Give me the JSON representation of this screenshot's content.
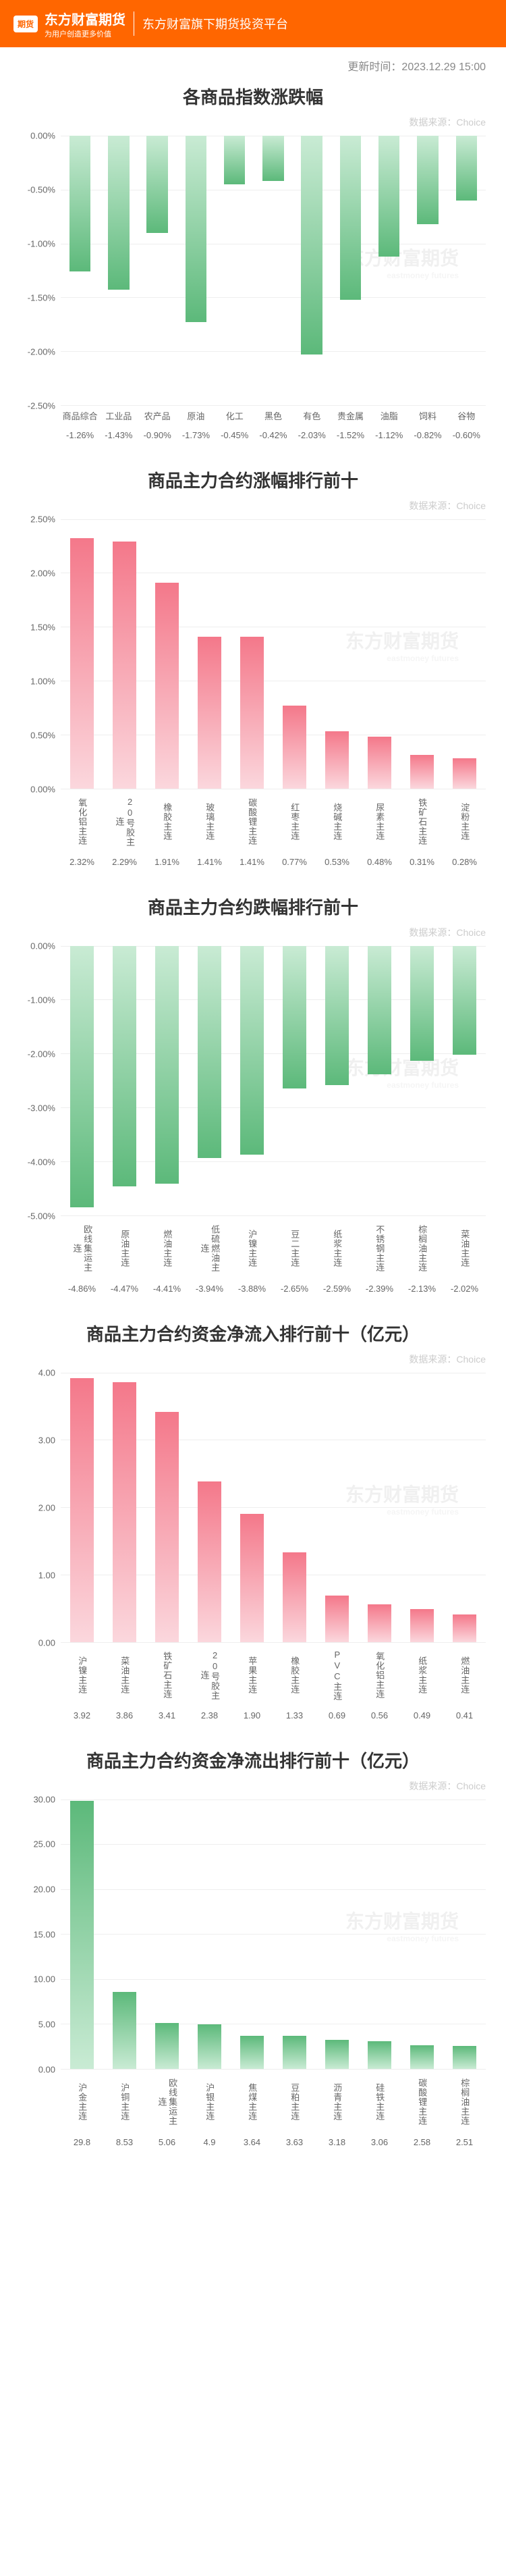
{
  "header": {
    "logo_text": "期货",
    "brand_main": "东方财富期货",
    "brand_sub": "为用户创造更多价值",
    "platform": "东方财富旗下期货投资平台",
    "bg_color": "#ff6600"
  },
  "timestamp": "更新时间：2023.12.29 15:00",
  "data_source_label": "数据来源：Choice",
  "watermark_main": "东方财富期货",
  "watermark_sub": "eastmoney futures",
  "colors": {
    "green_top": "#5cb97a",
    "green_bottom": "#c9ebd4",
    "red_top": "#f4788a",
    "red_bottom": "#fbd7dd",
    "grid": "#eeeeee",
    "text": "#666666"
  },
  "chart1": {
    "title": "各商品指数涨跌幅",
    "type": "bar_negative",
    "ymin": -2.5,
    "ymax": 0.0,
    "ystep": 0.5,
    "ysuffix": "%",
    "categories": [
      "商品综合",
      "工业品",
      "农产品",
      "原油",
      "化工",
      "黑色",
      "有色",
      "贵金属",
      "油脂",
      "饲料",
      "谷物"
    ],
    "values": [
      -1.26,
      -1.43,
      -0.9,
      -1.73,
      -0.45,
      -0.42,
      -2.03,
      -1.52,
      -1.12,
      -0.82,
      -0.6
    ],
    "value_labels": [
      "-1.26%",
      "-1.43%",
      "-0.90%",
      "-1.73%",
      "-0.45%",
      "-0.42%",
      "-2.03%",
      "-1.52%",
      "-1.12%",
      "-0.82%",
      "-0.60%"
    ],
    "vertical_labels": false
  },
  "chart2": {
    "title": "商品主力合约涨幅排行前十",
    "type": "bar_positive",
    "ymin": 0.0,
    "ymax": 2.5,
    "ystep": 0.5,
    "ysuffix": "%",
    "categories": [
      "氧化铝主连",
      "20号胶主连",
      "橡胶主连",
      "玻璃主连",
      "碳酸锂主连",
      "红枣主连",
      "烧碱主连",
      "尿素主连",
      "铁矿石主连",
      "淀粉主连"
    ],
    "values": [
      2.32,
      2.29,
      1.91,
      1.41,
      1.41,
      0.77,
      0.53,
      0.48,
      0.31,
      0.28
    ],
    "value_labels": [
      "2.32%",
      "2.29%",
      "1.91%",
      "1.41%",
      "1.41%",
      "0.77%",
      "0.53%",
      "0.48%",
      "0.31%",
      "0.28%"
    ],
    "color": "red",
    "vertical_labels": true
  },
  "chart3": {
    "title": "商品主力合约跌幅排行前十",
    "type": "bar_negative",
    "ymin": -5.0,
    "ymax": 0.0,
    "ystep": 1.0,
    "ysuffix": "%",
    "categories": [
      "欧线集运主连",
      "原油主连",
      "燃油主连",
      "低硫燃油主连",
      "沪镍主连",
      "豆二主连",
      "纸浆主连",
      "不锈钢主连",
      "棕榈油主连",
      "菜油主连"
    ],
    "values": [
      -4.86,
      -4.47,
      -4.41,
      -3.94,
      -3.88,
      -2.65,
      -2.59,
      -2.39,
      -2.13,
      -2.02
    ],
    "value_labels": [
      "-4.86%",
      "-4.47%",
      "-4.41%",
      "-3.94%",
      "-3.88%",
      "-2.65%",
      "-2.59%",
      "-2.39%",
      "-2.13%",
      "-2.02%"
    ],
    "color": "green",
    "vertical_labels": true
  },
  "chart4": {
    "title": "商品主力合约资金净流入排行前十（亿元）",
    "type": "bar_positive",
    "ymin": 0.0,
    "ymax": 4.0,
    "ystep": 1.0,
    "ysuffix": "",
    "categories": [
      "沪镍主连",
      "菜油主连",
      "铁矿石主连",
      "20号胶主连",
      "苹果主连",
      "橡胶主连",
      "PVC主连",
      "氧化铝主连",
      "纸浆主连",
      "燃油主连"
    ],
    "values": [
      3.92,
      3.86,
      3.41,
      2.38,
      1.9,
      1.33,
      0.69,
      0.56,
      0.49,
      0.41
    ],
    "value_labels": [
      "3.92",
      "3.86",
      "3.41",
      "2.38",
      "1.90",
      "1.33",
      "0.69",
      "0.56",
      "0.49",
      "0.41"
    ],
    "color": "red",
    "vertical_labels": true
  },
  "chart5": {
    "title": "商品主力合约资金净流出排行前十（亿元）",
    "type": "bar_positive",
    "ymin": 0.0,
    "ymax": 30.0,
    "ystep": 5.0,
    "ysuffix": "",
    "categories": [
      "沪金主连",
      "沪铜主连",
      "欧线集运主连",
      "沪银主连",
      "焦煤主连",
      "豆粕主连",
      "沥青主连",
      "硅铁主连",
      "碳酸锂主连",
      "棕榈油主连"
    ],
    "values": [
      29.8,
      8.53,
      5.06,
      4.9,
      3.64,
      3.63,
      3.18,
      3.06,
      2.58,
      2.51
    ],
    "value_labels": [
      "29.8",
      "8.53",
      "5.06",
      "4.9",
      "3.64",
      "3.63",
      "3.18",
      "3.06",
      "2.58",
      "2.51"
    ],
    "color": "green",
    "vertical_labels": true
  }
}
